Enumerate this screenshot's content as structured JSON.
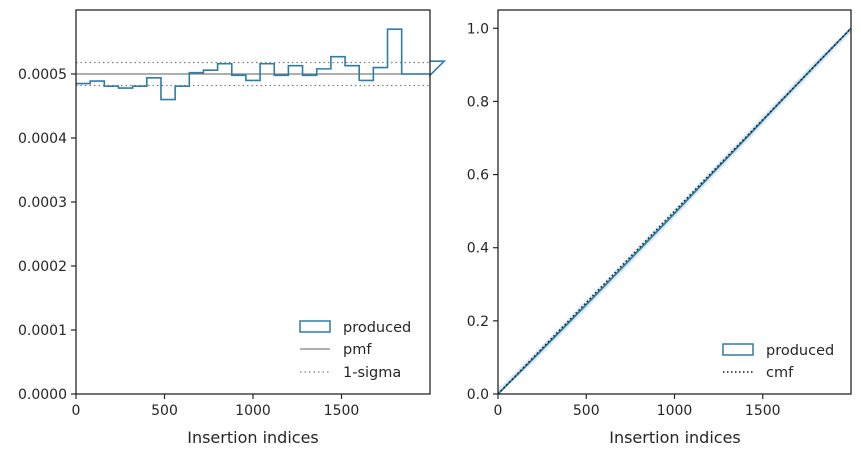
{
  "colors": {
    "produced": "#2e7ca8",
    "produced_band": "#bcd6e8",
    "pmf": "#7f7f7f",
    "sigma": "#7f7f7f",
    "cmf": "#1a1a1a",
    "axes": "#262626"
  },
  "chart_data": [
    {
      "type": "histogram-step",
      "xlabel": "Insertion indices",
      "ylabel": "",
      "xlim": [
        0,
        2000
      ],
      "ylim": [
        0,
        0.0006
      ],
      "xticks": [
        0,
        500,
        1000,
        1500
      ],
      "xtick_labels": [
        "0",
        "500",
        "1000",
        "1500"
      ],
      "yticks": [
        0,
        0.0001,
        0.0002,
        0.0003,
        0.0004,
        0.0005
      ],
      "ytick_labels": [
        "0.0000",
        "0.0001",
        "0.0002",
        "0.0003",
        "0.0004",
        "0.0005"
      ],
      "bin_width": 80,
      "bin_edges_start": 0,
      "series": [
        {
          "name": "produced",
          "style": "step",
          "values": [
            0.000485,
            0.000489,
            0.000481,
            0.000478,
            0.000481,
            0.000494,
            0.00046,
            0.000481,
            0.000502,
            0.000506,
            0.000516,
            0.000498,
            0.00049,
            0.000516,
            0.000498,
            0.000513,
            0.000498,
            0.000508,
            0.000527,
            0.000513,
            0.00049,
            0.00051,
            0.00057,
            0.0005,
            0.0005,
            0.000498,
            0.00052
          ]
        },
        {
          "name": "pmf",
          "style": "solid",
          "value": 0.0005
        },
        {
          "name": "1-sigma",
          "style": "dotted",
          "values": [
            0.000518,
            0.000482
          ]
        }
      ],
      "legend": {
        "position": "lower-right",
        "entries": [
          "produced",
          "pmf",
          "1-sigma"
        ]
      }
    },
    {
      "type": "line",
      "xlabel": "Insertion indices",
      "ylabel": "",
      "xlim": [
        0,
        2000
      ],
      "ylim": [
        0,
        1.05
      ],
      "xticks": [
        0,
        500,
        1000,
        1500
      ],
      "xtick_labels": [
        "0",
        "500",
        "1000",
        "1500"
      ],
      "yticks": [
        0,
        0.2,
        0.4,
        0.6,
        0.8,
        1.0
      ],
      "ytick_labels": [
        "0.0",
        "0.2",
        "0.4",
        "0.6",
        "0.8",
        "1.0"
      ],
      "series": [
        {
          "name": "produced",
          "style": "solid",
          "x": [
            0,
            200,
            400,
            600,
            800,
            1000,
            1200,
            1400,
            1600,
            1800,
            2000
          ],
          "y": [
            0,
            0.097,
            0.195,
            0.294,
            0.394,
            0.494,
            0.596,
            0.697,
            0.799,
            0.9,
            1.0
          ]
        },
        {
          "name": "cmf",
          "style": "dotted",
          "x": [
            0,
            2000
          ],
          "y": [
            0,
            1.0
          ]
        }
      ],
      "legend": {
        "position": "lower-right",
        "entries": [
          "produced",
          "cmf"
        ]
      }
    }
  ]
}
